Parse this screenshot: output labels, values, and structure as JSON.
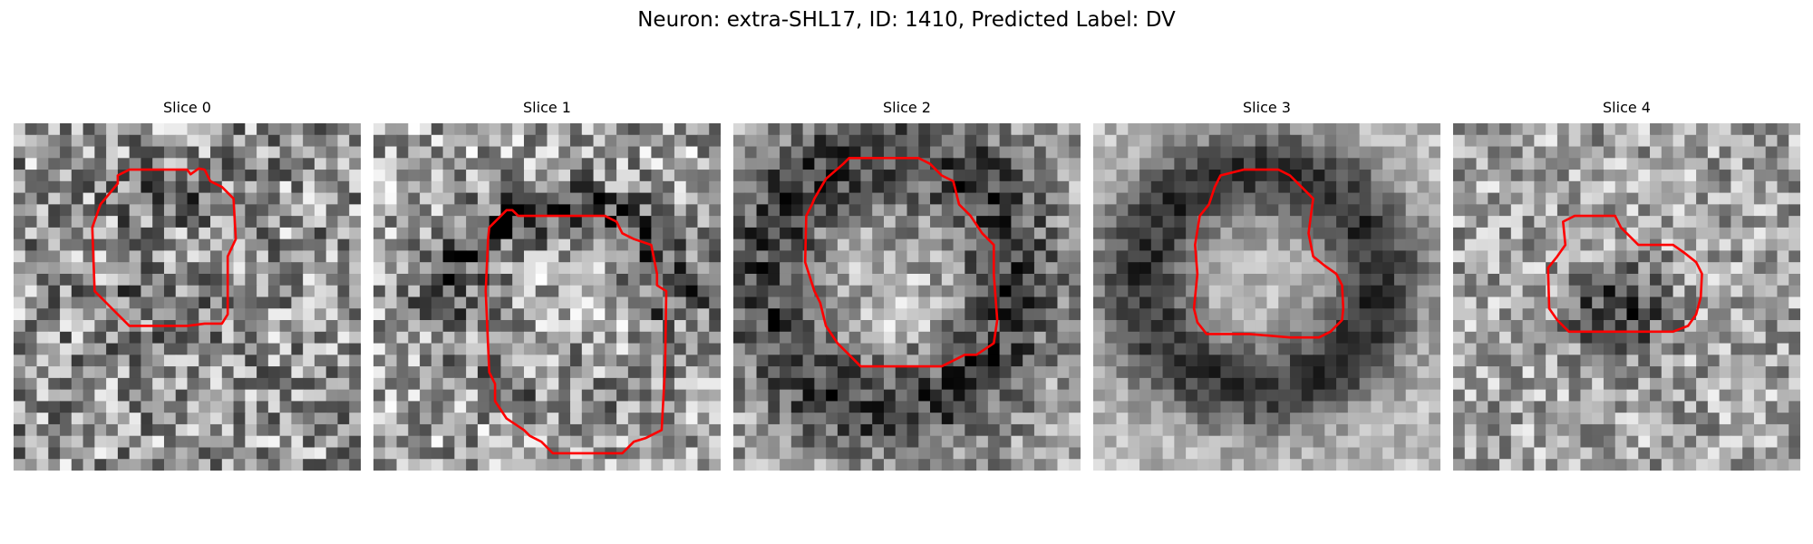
{
  "figure": {
    "title": "Neuron: extra-SHL17, ID: 1410, Predicted Label: DV",
    "outline_color": "#ff0000"
  },
  "slices": [
    {
      "label": "Slice 0"
    },
    {
      "label": "Slice 1"
    },
    {
      "label": "Slice 2"
    },
    {
      "label": "Slice 3"
    },
    {
      "label": "Slice 4"
    }
  ]
}
